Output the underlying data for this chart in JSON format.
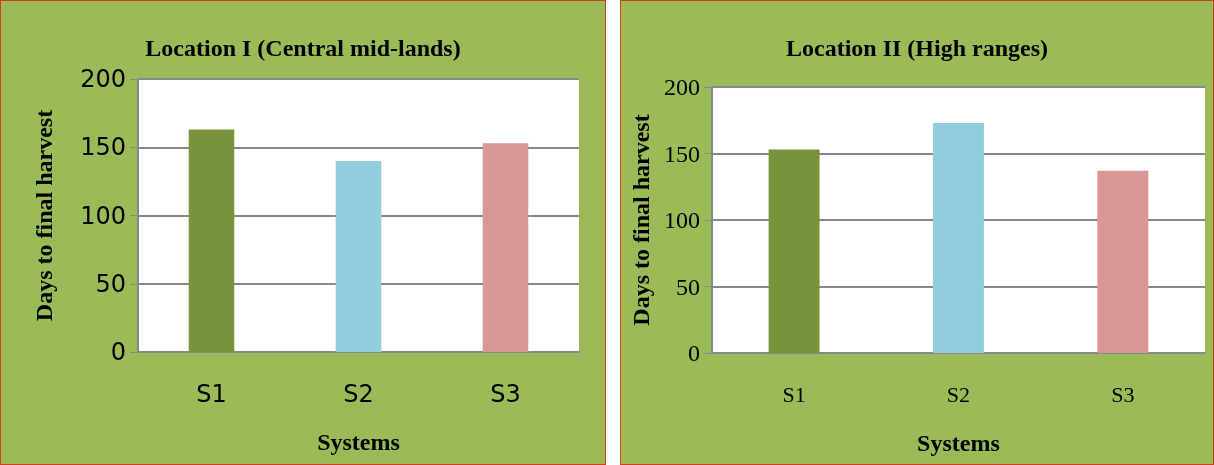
{
  "chart_data": [
    {
      "type": "bar",
      "title": "Location I (Central mid-lands)",
      "xlabel": "Systems",
      "ylabel": "Days to final harvest",
      "categories": [
        "S1",
        "S2",
        "S3"
      ],
      "values": [
        163,
        140,
        153
      ],
      "colors": [
        "#77933c",
        "#93cddd",
        "#d99694"
      ],
      "ylim": [
        0,
        200
      ],
      "yticks": [
        0,
        50,
        100,
        150,
        200
      ],
      "grid": "y"
    },
    {
      "type": "bar",
      "title": "Location II (High ranges)",
      "xlabel": "Systems",
      "ylabel": "Days to final harvest",
      "categories": [
        "S1",
        "S2",
        "S3"
      ],
      "values": [
        153,
        173,
        137
      ],
      "colors": [
        "#77933c",
        "#93cddd",
        "#d99694"
      ],
      "ylim": [
        0,
        200
      ],
      "yticks": [
        0,
        50,
        100,
        150,
        200
      ],
      "grid": "y"
    }
  ]
}
